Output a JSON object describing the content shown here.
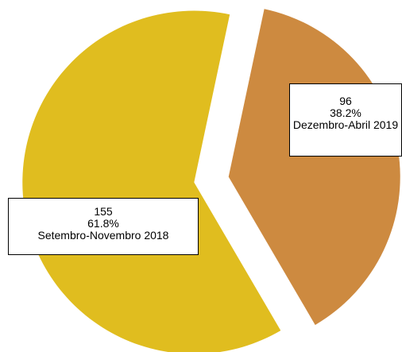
{
  "chart_data": {
    "type": "pie",
    "categories": [
      "Setembro-Novembro 2018",
      "Dezembro-Abril 2019"
    ],
    "values": [
      155,
      96
    ],
    "percent_labels": [
      "61.8%",
      "38.2%"
    ],
    "colors": [
      "#e0bd1f",
      "#cd8a40"
    ]
  }
}
